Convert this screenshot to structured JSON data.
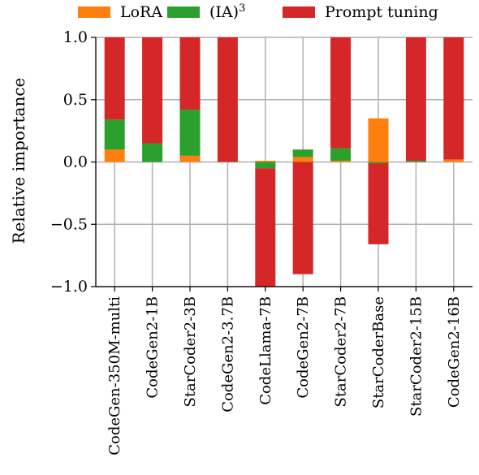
{
  "chart_data": {
    "type": "bar",
    "stacked": true,
    "ylabel": "Relative importance",
    "ylim": [
      -1.0,
      1.0
    ],
    "yticks": [
      -1.0,
      -0.5,
      0.0,
      0.5,
      1.0
    ],
    "ytick_labels": [
      "−1.0",
      "−0.5",
      "0.0",
      "0.5",
      "1.0"
    ],
    "grid": true,
    "legend_position": "top",
    "categories": [
      "CodeGen-350M-multi",
      "CodeGen2-1B",
      "StarCoder2-3B",
      "CodeGen2-3.7B",
      "CodeLlama-7B",
      "CodeGen2-7B",
      "StarCoder2-7B",
      "StarCoderBase",
      "StarCoder2-15B",
      "CodeGen2-16B"
    ],
    "series": [
      {
        "name": "LoRA",
        "legend_label": "LoRA",
        "color": "#ff7f0e",
        "values": [
          0.1,
          0.0,
          0.05,
          0.0,
          0.01,
          0.04,
          0.01,
          0.35,
          0.0,
          0.02
        ]
      },
      {
        "name": "(IA)3",
        "legend_label": "(IA)",
        "legend_sup": "3",
        "color": "#2ca02c",
        "values": [
          0.24,
          0.15,
          0.37,
          0.0,
          -0.05,
          0.06,
          0.1,
          -0.01,
          0.01,
          0.0
        ]
      },
      {
        "name": "Prompt tuning",
        "legend_label": "Prompt tuning",
        "color": "#d62728",
        "values": [
          0.66,
          0.85,
          0.58,
          1.0,
          -0.95,
          -0.9,
          0.89,
          -0.65,
          0.99,
          0.98
        ]
      }
    ]
  }
}
